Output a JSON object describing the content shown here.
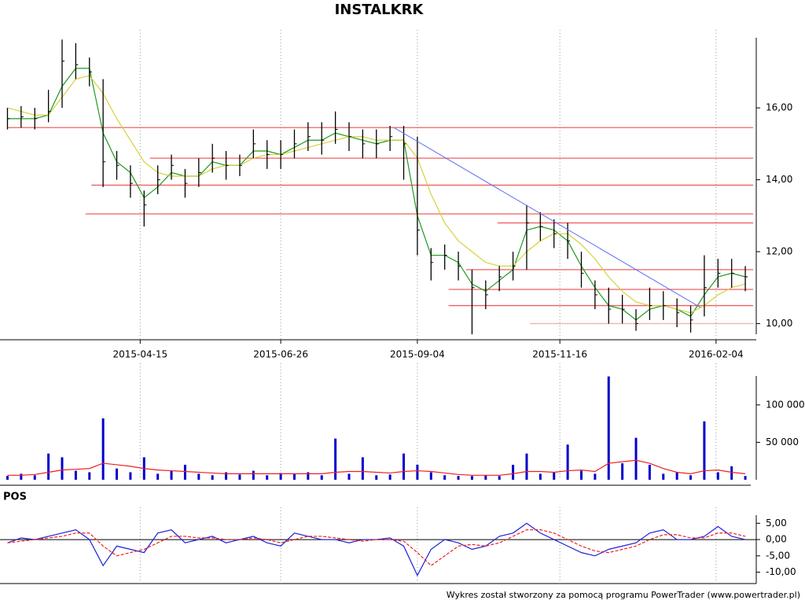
{
  "chart_data": [
    {
      "type": "ohlc",
      "title": "INSTALKRK",
      "color": "#000000",
      "grid": true,
      "x": [
        "2015-02-06",
        "2015-02-13",
        "2015-02-20",
        "2015-02-27",
        "2015-03-06",
        "2015-03-13",
        "2015-03-20",
        "2015-03-27",
        "2015-04-03",
        "2015-04-10",
        "2015-04-17",
        "2015-04-24",
        "2015-05-01",
        "2015-05-08",
        "2015-05-15",
        "2015-05-22",
        "2015-05-29",
        "2015-06-05",
        "2015-06-12",
        "2015-06-19",
        "2015-06-26",
        "2015-07-03",
        "2015-07-10",
        "2015-07-17",
        "2015-07-24",
        "2015-07-31",
        "2015-08-07",
        "2015-08-14",
        "2015-08-21",
        "2015-08-28",
        "2015-09-04",
        "2015-09-11",
        "2015-09-18",
        "2015-09-25",
        "2015-10-02",
        "2015-10-09",
        "2015-10-16",
        "2015-10-23",
        "2015-10-30",
        "2015-11-06",
        "2015-11-13",
        "2015-11-20",
        "2015-11-27",
        "2015-12-04",
        "2015-12-11",
        "2015-12-18",
        "2015-12-25",
        "2016-01-01",
        "2016-01-08",
        "2016-01-15",
        "2016-01-22",
        "2016-01-29",
        "2016-02-05",
        "2016-02-12",
        "2016-02-19"
      ],
      "high": [
        16.0,
        16.05,
        16.0,
        16.5,
        17.9,
        17.8,
        17.4,
        16.8,
        14.8,
        14.4,
        13.7,
        14.4,
        14.7,
        14.3,
        14.6,
        15.0,
        14.8,
        14.7,
        15.4,
        15.1,
        15.1,
        15.4,
        15.6,
        15.6,
        15.9,
        15.6,
        15.4,
        15.4,
        15.5,
        15.5,
        15.2,
        12.1,
        12.2,
        12.0,
        11.5,
        11.2,
        11.6,
        12.0,
        13.3,
        13.1,
        12.9,
        12.8,
        12.0,
        11.2,
        11.0,
        10.8,
        10.4,
        11.0,
        10.9,
        10.7,
        10.5,
        11.9,
        11.8,
        11.8,
        11.6
      ],
      "low": [
        15.4,
        15.45,
        15.4,
        15.6,
        16.0,
        16.8,
        16.6,
        13.8,
        14.0,
        13.5,
        12.7,
        13.6,
        14.0,
        13.5,
        13.8,
        14.2,
        14.0,
        14.1,
        14.6,
        14.3,
        14.3,
        14.6,
        14.8,
        14.7,
        15.0,
        14.8,
        14.6,
        14.6,
        14.8,
        14.0,
        11.9,
        11.2,
        11.5,
        11.2,
        9.7,
        10.4,
        10.9,
        11.2,
        11.5,
        12.3,
        12.1,
        11.8,
        11.0,
        10.4,
        10.0,
        10.0,
        9.8,
        10.1,
        10.1,
        9.9,
        9.75,
        10.2,
        11.0,
        11.0,
        10.9
      ],
      "close": [
        15.7,
        15.75,
        15.7,
        15.9,
        17.3,
        17.2,
        17.0,
        14.5,
        14.4,
        13.9,
        13.3,
        14.0,
        14.4,
        13.9,
        14.2,
        14.6,
        14.4,
        14.4,
        15.0,
        14.7,
        14.7,
        15.0,
        15.2,
        15.1,
        15.4,
        15.2,
        15.0,
        15.0,
        15.2,
        15.0,
        12.6,
        11.7,
        11.9,
        11.6,
        11.0,
        10.8,
        11.3,
        11.6,
        12.8,
        12.7,
        12.5,
        12.3,
        11.4,
        10.8,
        10.4,
        10.4,
        10.0,
        10.5,
        10.5,
        10.3,
        10.1,
        11.0,
        11.4,
        11.4,
        11.3
      ],
      "lines": [
        {
          "color": "#1f9a1f",
          "values": [
            15.7,
            15.7,
            15.7,
            15.8,
            16.6,
            17.1,
            17.1,
            15.3,
            14.5,
            14.2,
            13.5,
            13.8,
            14.2,
            14.1,
            14.1,
            14.5,
            14.4,
            14.4,
            14.8,
            14.8,
            14.7,
            14.9,
            15.1,
            15.1,
            15.3,
            15.2,
            15.1,
            15.0,
            15.1,
            15.1,
            13.0,
            11.9,
            11.9,
            11.7,
            11.1,
            10.9,
            11.2,
            11.5,
            12.6,
            12.7,
            12.6,
            12.3,
            11.6,
            11.0,
            10.5,
            10.4,
            10.1,
            10.4,
            10.5,
            10.4,
            10.2,
            10.8,
            11.3,
            11.4,
            11.3
          ]
        },
        {
          "color": "#d8d040",
          "values": [
            16.0,
            15.9,
            15.8,
            15.8,
            16.3,
            16.8,
            16.9,
            16.4,
            15.7,
            15.1,
            14.5,
            14.2,
            14.1,
            14.1,
            14.1,
            14.3,
            14.4,
            14.4,
            14.6,
            14.7,
            14.7,
            14.8,
            14.9,
            15.0,
            15.1,
            15.2,
            15.2,
            15.1,
            15.1,
            15.1,
            14.6,
            13.6,
            12.8,
            12.3,
            12.0,
            11.7,
            11.6,
            11.6,
            12.0,
            12.3,
            12.5,
            12.5,
            12.2,
            11.8,
            11.3,
            10.9,
            10.6,
            10.5,
            10.5,
            10.4,
            10.3,
            10.5,
            10.8,
            11.0,
            11.1
          ]
        }
      ],
      "level_color": "#f06060",
      "levels": [
        {
          "value": 15.45,
          "from": "2015-02-06"
        },
        {
          "value": 14.6,
          "from": "2015-04-20"
        },
        {
          "value": 13.85,
          "from": "2015-03-21"
        },
        {
          "value": 13.05,
          "from": "2015-03-18"
        },
        {
          "value": 12.8,
          "from": "2015-10-15"
        },
        {
          "value": 11.5,
          "from": "2015-09-29"
        },
        {
          "value": 10.95,
          "from": "2015-09-20"
        },
        {
          "value": 10.5,
          "from": "2015-09-20"
        },
        {
          "value": 10.0,
          "from": "2015-11-01",
          "style": "dotted"
        }
      ],
      "trend": {
        "color": "#6070f0",
        "x": [
          "2015-08-23",
          "2016-01-27"
        ],
        "y": [
          15.45,
          10.45
        ]
      },
      "xlim": [
        "2015-02-05",
        "2016-02-23"
      ],
      "ylim": [
        9.55,
        17.95
      ],
      "xticks": [
        "2015-04-15",
        "2015-06-26",
        "2015-09-04",
        "2015-11-16",
        "2016-02-04"
      ],
      "yticks": [
        {
          "value": 10,
          "label": "10,00"
        },
        {
          "value": 12,
          "label": "12,00"
        },
        {
          "value": 14,
          "label": "14,00"
        },
        {
          "value": 16,
          "label": "16,00"
        }
      ]
    },
    {
      "type": "bar",
      "color": "#0000cc",
      "x": [
        "2015-02-06",
        "2015-02-13",
        "2015-02-20",
        "2015-02-27",
        "2015-03-06",
        "2015-03-13",
        "2015-03-20",
        "2015-03-27",
        "2015-04-03",
        "2015-04-10",
        "2015-04-17",
        "2015-04-24",
        "2015-05-01",
        "2015-05-08",
        "2015-05-15",
        "2015-05-22",
        "2015-05-29",
        "2015-06-05",
        "2015-06-12",
        "2015-06-19",
        "2015-06-26",
        "2015-07-03",
        "2015-07-10",
        "2015-07-17",
        "2015-07-24",
        "2015-07-31",
        "2015-08-07",
        "2015-08-14",
        "2015-08-21",
        "2015-08-28",
        "2015-09-04",
        "2015-09-11",
        "2015-09-18",
        "2015-09-25",
        "2015-10-02",
        "2015-10-09",
        "2015-10-16",
        "2015-10-23",
        "2015-10-30",
        "2015-11-06",
        "2015-11-13",
        "2015-11-20",
        "2015-11-27",
        "2015-12-04",
        "2015-12-11",
        "2015-12-18",
        "2015-12-25",
        "2016-01-01",
        "2016-01-08",
        "2016-01-15",
        "2016-01-22",
        "2016-01-29",
        "2016-02-05",
        "2016-02-12",
        "2016-02-19"
      ],
      "values": [
        5000,
        8000,
        6000,
        35000,
        30000,
        12000,
        10000,
        82000,
        15000,
        10000,
        30000,
        8000,
        12000,
        20000,
        8000,
        6000,
        10000,
        7000,
        12000,
        6000,
        9000,
        8000,
        10000,
        6000,
        55000,
        8000,
        30000,
        6000,
        7000,
        35000,
        20000,
        10000,
        6000,
        5000,
        5000,
        6000,
        5000,
        20000,
        35000,
        8000,
        10000,
        47000,
        12000,
        8000,
        138000,
        22000,
        56000,
        20000,
        8000,
        10000,
        6000,
        78000,
        10000,
        18000,
        5000
      ],
      "lines": [
        {
          "color": "#ee2020",
          "values": [
            6000,
            6000,
            7000,
            10000,
            13000,
            14000,
            15000,
            22000,
            20000,
            18000,
            15000,
            13000,
            12000,
            11000,
            10000,
            9000,
            8000,
            8000,
            8000,
            8000,
            8000,
            8000,
            8000,
            8000,
            10000,
            11000,
            11000,
            10000,
            9000,
            11000,
            12000,
            11000,
            9000,
            7000,
            6000,
            6000,
            6000,
            8000,
            11000,
            11000,
            10000,
            12000,
            13000,
            11000,
            22000,
            24000,
            26000,
            22000,
            15000,
            10000,
            8000,
            12000,
            13000,
            10000,
            8000
          ]
        }
      ],
      "xlim": [
        "2015-02-05",
        "2016-02-23"
      ],
      "ylim": [
        0,
        145000
      ],
      "yticks": [
        {
          "value": 50000,
          "label": "50 000"
        },
        {
          "value": 100000,
          "label": "100 000"
        }
      ]
    },
    {
      "type": "line",
      "title": "POS",
      "x": [
        "2015-02-06",
        "2015-02-13",
        "2015-02-20",
        "2015-02-27",
        "2015-03-06",
        "2015-03-13",
        "2015-03-20",
        "2015-03-27",
        "2015-04-03",
        "2015-04-10",
        "2015-04-17",
        "2015-04-24",
        "2015-05-01",
        "2015-05-08",
        "2015-05-15",
        "2015-05-22",
        "2015-05-29",
        "2015-06-05",
        "2015-06-12",
        "2015-06-19",
        "2015-06-26",
        "2015-07-03",
        "2015-07-10",
        "2015-07-17",
        "2015-07-24",
        "2015-07-31",
        "2015-08-07",
        "2015-08-14",
        "2015-08-21",
        "2015-08-28",
        "2015-09-04",
        "2015-09-11",
        "2015-09-18",
        "2015-09-25",
        "2015-10-02",
        "2015-10-09",
        "2015-10-16",
        "2015-10-23",
        "2015-10-30",
        "2015-11-06",
        "2015-11-13",
        "2015-11-20",
        "2015-11-27",
        "2015-12-04",
        "2015-12-11",
        "2015-12-18",
        "2015-12-25",
        "2016-01-01",
        "2016-01-08",
        "2016-01-15",
        "2016-01-22",
        "2016-01-29",
        "2016-02-05",
        "2016-02-12",
        "2016-02-19"
      ],
      "series": [
        {
          "color": "#2020dd",
          "values": [
            -1,
            0.5,
            0,
            1,
            2,
            3,
            0,
            -8,
            -2,
            -3,
            -4,
            2,
            3,
            -1,
            0,
            1,
            -1,
            0,
            1,
            -1,
            -2,
            2,
            1,
            0,
            0,
            -1,
            0,
            0,
            0.5,
            -2,
            -11,
            -3,
            0,
            -1,
            -3,
            -2,
            1,
            2,
            5,
            2,
            0,
            -2,
            -4,
            -5,
            -3,
            -2,
            -1,
            2,
            3,
            0,
            0,
            1,
            4,
            1,
            0
          ]
        },
        {
          "color": "#ee2020",
          "dashed": true,
          "values": [
            -1,
            -0.5,
            0,
            0.5,
            1,
            2,
            2,
            -2,
            -5,
            -4,
            -3,
            -1,
            1,
            1,
            0.5,
            0.5,
            0,
            0,
            0.5,
            0,
            -1,
            0,
            1,
            1,
            0.5,
            0,
            -0.5,
            0,
            0,
            -0.5,
            -4,
            -8,
            -5,
            -2,
            -1.5,
            -2,
            -1,
            1,
            3,
            3,
            2,
            0,
            -2,
            -3.5,
            -4,
            -3,
            -2,
            0,
            1.5,
            1.5,
            0.5,
            0.5,
            2,
            2,
            1
          ]
        }
      ],
      "xlim": [
        "2015-02-05",
        "2016-02-23"
      ],
      "ylim": [
        -13.5,
        7.5
      ],
      "yticks": [
        {
          "value": -10,
          "label": "-10,00"
        },
        {
          "value": -5,
          "label": "-5,00"
        },
        {
          "value": 0,
          "label": "0,00"
        },
        {
          "value": 5,
          "label": "5,00"
        }
      ]
    }
  ],
  "footer": "Wykres został stworzony za pomocą programu PowerTrader (www.powertrader.pl)"
}
